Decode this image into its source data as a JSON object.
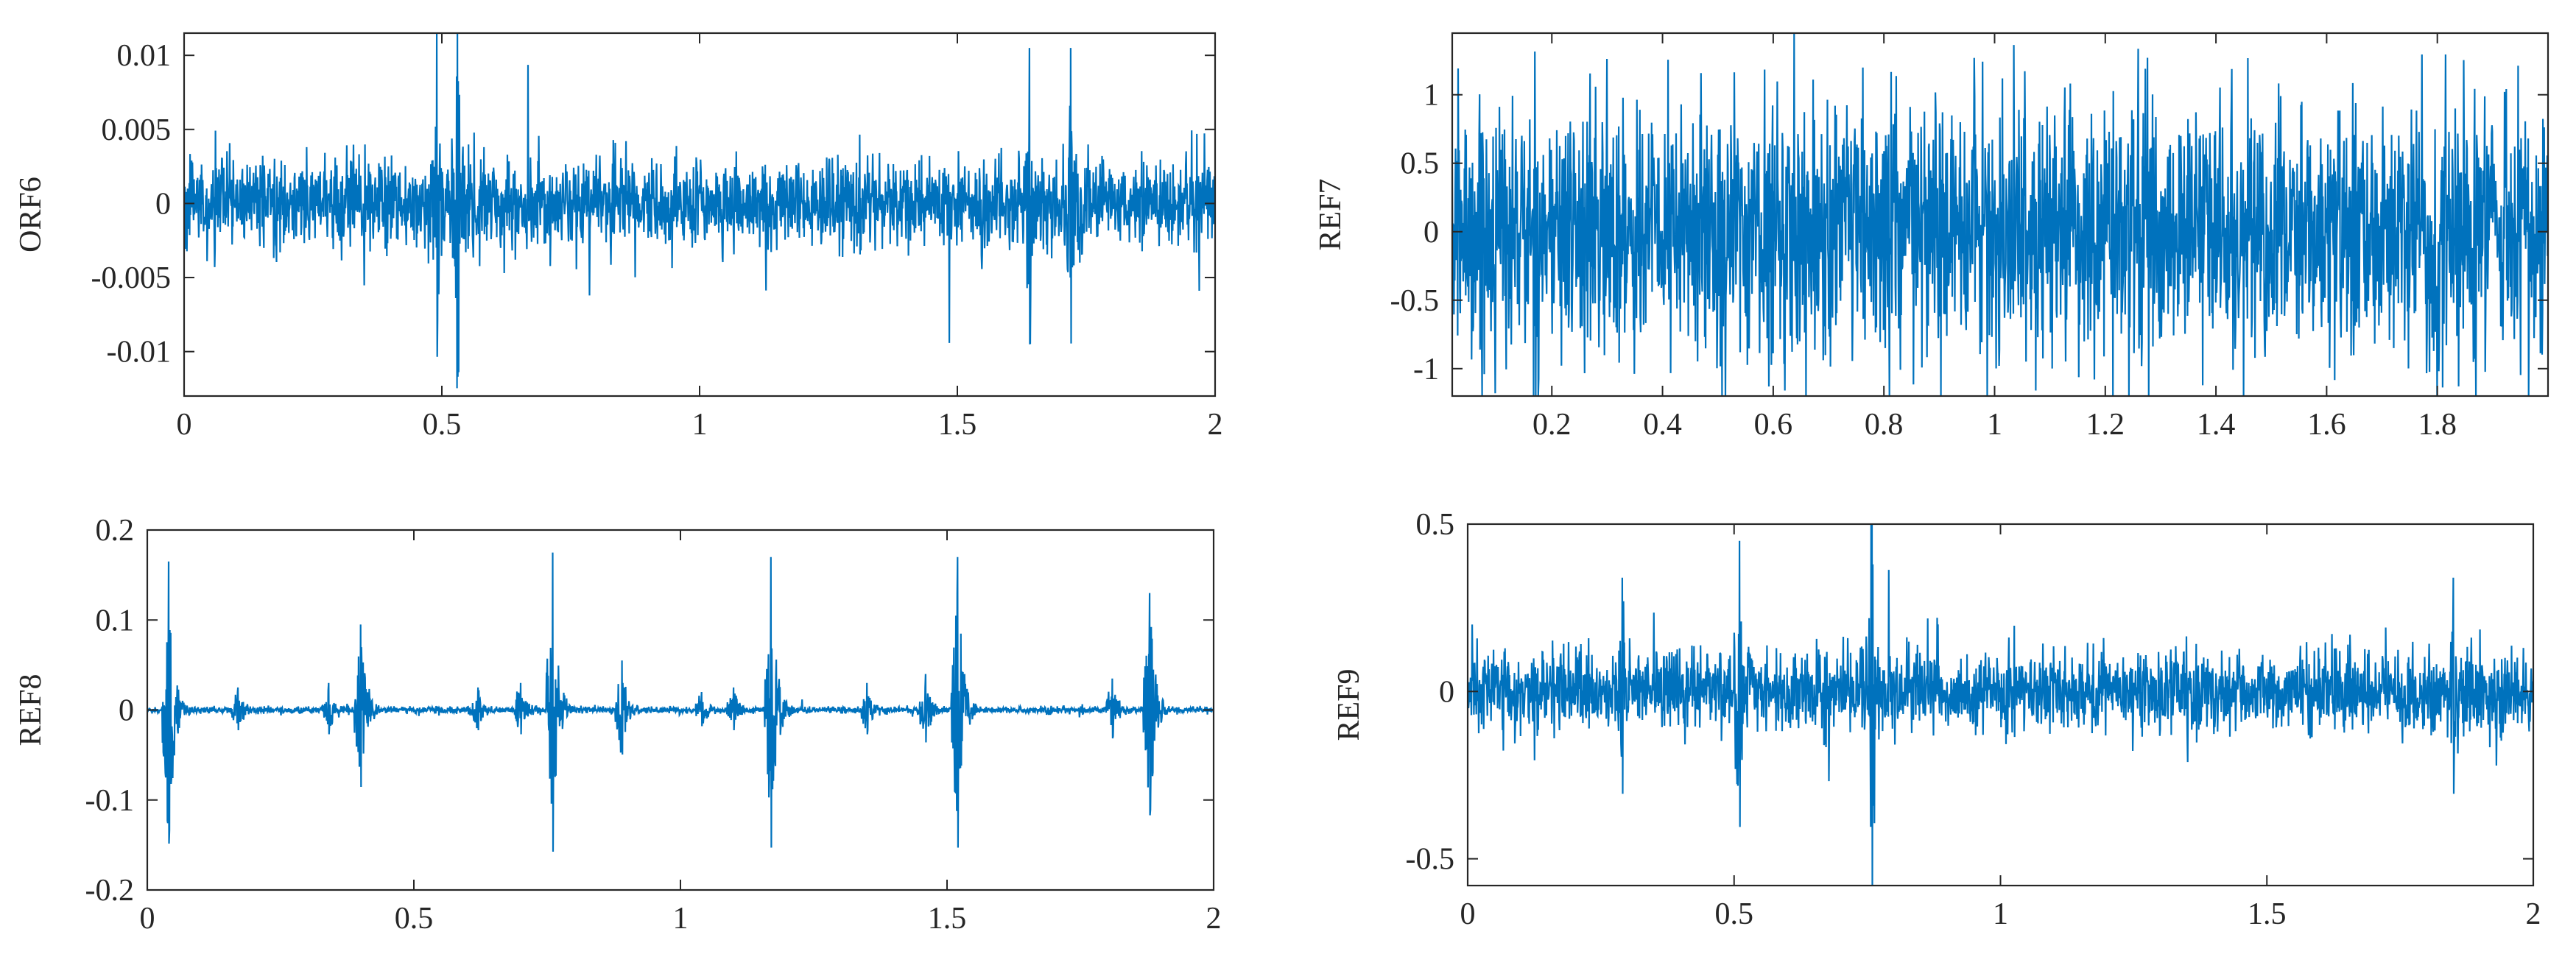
{
  "figure": {
    "line_color": "#0072BD",
    "axes_color": "#262626",
    "background": "#ffffff"
  },
  "chart_data": [
    {
      "type": "line",
      "name": "top-left",
      "ylabel": "ORF6",
      "xlim": [
        0,
        2
      ],
      "ylim": [
        -0.013,
        0.0115
      ],
      "xticks": [
        0,
        0.5,
        1,
        1.5,
        2
      ],
      "xtick_labels": [
        "0",
        "0.5",
        "1",
        "1.5",
        "2"
      ],
      "yticks": [
        -0.01,
        -0.005,
        0,
        0.005,
        0.01
      ],
      "ytick_labels": [
        "-0.01",
        "-0.005",
        "0",
        "0.005",
        "0.01"
      ],
      "grid": false,
      "signal": {
        "kind": "noise",
        "amplitude": 0.0032,
        "bursts": [
          {
            "x": 0.49,
            "amp": 0.0115
          },
          {
            "x": 0.53,
            "amp": 0.013
          },
          {
            "x": 1.64,
            "amp": 0.0105
          },
          {
            "x": 1.72,
            "amp": 0.0105
          }
        ]
      }
    },
    {
      "type": "line",
      "name": "top-right",
      "ylabel": "REF7",
      "xlim": [
        0.02,
        2.0
      ],
      "ylim": [
        -1.2,
        1.45
      ],
      "xticks": [
        0.2,
        0.4,
        0.6,
        0.8,
        1,
        1.2,
        1.4,
        1.6,
        1.8
      ],
      "xtick_labels": [
        "0.2",
        "0.4",
        "0.6",
        "0.8",
        "1",
        "1.2",
        "1.4",
        "1.6",
        "1.8"
      ],
      "yticks": [
        -1,
        -0.5,
        0,
        0.5,
        1
      ],
      "ytick_labels": [
        "-1",
        "-0.5",
        "0",
        "0.5",
        "1"
      ],
      "grid": false,
      "signal": {
        "kind": "dense",
        "amplitude": 0.85,
        "bursts": []
      }
    },
    {
      "type": "line",
      "name": "bottom-left",
      "ylabel": "REF8",
      "xlim": [
        0,
        2
      ],
      "ylim": [
        -0.2,
        0.2
      ],
      "xticks": [
        0,
        0.5,
        1,
        1.5,
        2
      ],
      "xtick_labels": [
        "0",
        "0.5",
        "1",
        "1.5",
        "2"
      ],
      "yticks": [
        -0.2,
        -0.1,
        0,
        0.1,
        0.2
      ],
      "ytick_labels": [
        "-0.2",
        "-0.1",
        "0",
        "0.1",
        "0.2"
      ],
      "grid": false,
      "signal": {
        "kind": "pulses",
        "amplitude": 0.004,
        "bursts": [
          {
            "x": 0.04,
            "amp": 0.165
          },
          {
            "x": 0.17,
            "amp": 0.025
          },
          {
            "x": 0.34,
            "amp": 0.03
          },
          {
            "x": 0.4,
            "amp": 0.095
          },
          {
            "x": 0.62,
            "amp": 0.025
          },
          {
            "x": 0.7,
            "amp": 0.03
          },
          {
            "x": 0.76,
            "amp": 0.175
          },
          {
            "x": 0.89,
            "amp": 0.055
          },
          {
            "x": 1.04,
            "amp": 0.02
          },
          {
            "x": 1.1,
            "amp": 0.025
          },
          {
            "x": 1.17,
            "amp": 0.17
          },
          {
            "x": 1.35,
            "amp": 0.03
          },
          {
            "x": 1.46,
            "amp": 0.04
          },
          {
            "x": 1.52,
            "amp": 0.17
          },
          {
            "x": 1.81,
            "amp": 0.035
          },
          {
            "x": 1.88,
            "amp": 0.13
          }
        ]
      }
    },
    {
      "type": "line",
      "name": "bottom-right",
      "ylabel": "REF9",
      "xlim": [
        0,
        2
      ],
      "ylim": [
        -0.58,
        0.5
      ],
      "xticks": [
        0,
        0.5,
        1,
        1.5,
        2
      ],
      "xtick_labels": [
        "0",
        "0.5",
        "1",
        "1.5",
        "2"
      ],
      "yticks": [
        -0.5,
        0,
        0.5
      ],
      "ytick_labels": [
        "-0.5",
        "0",
        "0.5"
      ],
      "grid": false,
      "signal": {
        "kind": "noise",
        "amplitude": 0.13,
        "bursts": [
          {
            "x": 0.29,
            "amp": 0.34
          },
          {
            "x": 0.51,
            "amp": 0.45
          },
          {
            "x": 0.76,
            "amp": 0.58
          },
          {
            "x": 0.76,
            "amp": 0.38
          },
          {
            "x": 1.85,
            "amp": 0.34
          }
        ]
      }
    }
  ]
}
